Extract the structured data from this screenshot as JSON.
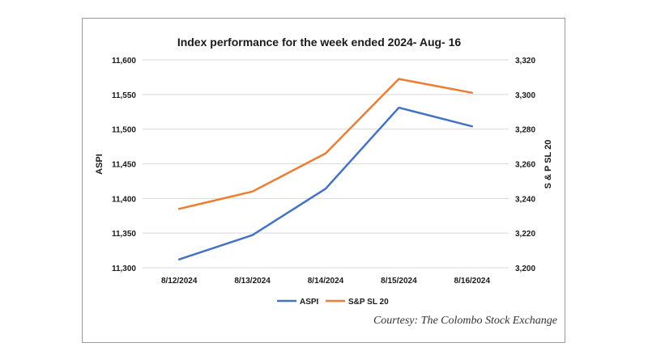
{
  "colors": {
    "aspi": "#4472C4",
    "snp": "#ED7D31",
    "grid": "#d9d9d9",
    "frame": "#9a9a9a"
  },
  "courtesy": "Courtesy: The Colombo Stock Exchange",
  "chart_data": {
    "type": "line",
    "title": "Index performance for the week ended 2024- Aug- 16",
    "categories": [
      "8/12/2024",
      "8/13/2024",
      "8/14/2024",
      "8/15/2024",
      "8/16/2024"
    ],
    "ylabel": "ASPI",
    "y2label": "S & P SL 20",
    "ylim": [
      11300,
      11600
    ],
    "y2lim": [
      3200,
      3320
    ],
    "yticks": [
      "11,300",
      "11,350",
      "11,400",
      "11,450",
      "11,500",
      "11,550",
      "11,600"
    ],
    "y2ticks": [
      "3,200",
      "3,220",
      "3,240",
      "3,260",
      "3,280",
      "3,300",
      "3,320"
    ],
    "grid": true,
    "legend_position": "bottom",
    "series": [
      {
        "name": "ASPI",
        "axis": "left",
        "values": [
          11312,
          11347,
          11414,
          11531,
          11504
        ]
      },
      {
        "name": "S&P SL 20",
        "axis": "right",
        "values": [
          3234,
          3244,
          3266,
          3309,
          3301
        ]
      }
    ]
  }
}
